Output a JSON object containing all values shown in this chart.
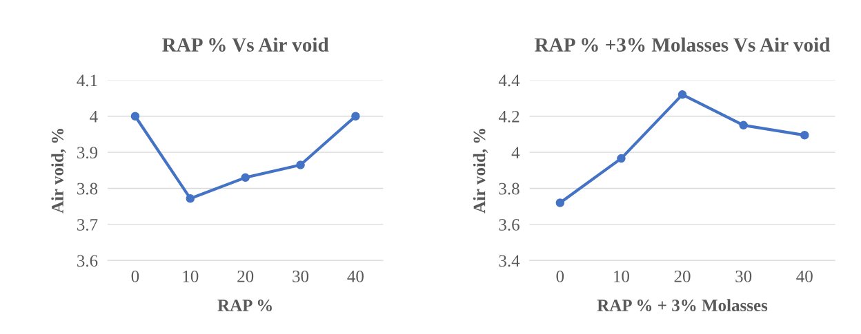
{
  "chart_data": [
    {
      "type": "line",
      "title": "RAP % Vs Air void",
      "xlabel": "RAP %",
      "ylabel": "Air void, %",
      "categories": [
        "0",
        "10",
        "20",
        "30",
        "40"
      ],
      "series": [
        {
          "color": "#4472c4",
          "values": [
            4.0,
            3.772,
            3.83,
            3.865,
            4.0
          ]
        }
      ],
      "ylim": [
        3.6,
        4.1
      ],
      "yticks": [
        3.6,
        3.7,
        3.8,
        3.9,
        4,
        4.1
      ],
      "grid": "y",
      "marker": "circle",
      "line_style": "solid",
      "legend": false
    },
    {
      "type": "line",
      "title": "RAP % +3% Molasses Vs Air void",
      "xlabel": "RAP % + 3% Molasses",
      "ylabel": "Air void, %",
      "categories": [
        "0",
        "10",
        "20",
        "30",
        "40"
      ],
      "series": [
        {
          "color": "#4472c4",
          "values": [
            3.72,
            3.966,
            4.32,
            4.15,
            4.095
          ]
        }
      ],
      "ylim": [
        3.4,
        4.4
      ],
      "yticks": [
        3.4,
        3.6,
        3.8,
        4,
        4.2,
        4.4
      ],
      "grid": "y",
      "marker": "circle",
      "line_style": "solid",
      "legend": false
    }
  ]
}
